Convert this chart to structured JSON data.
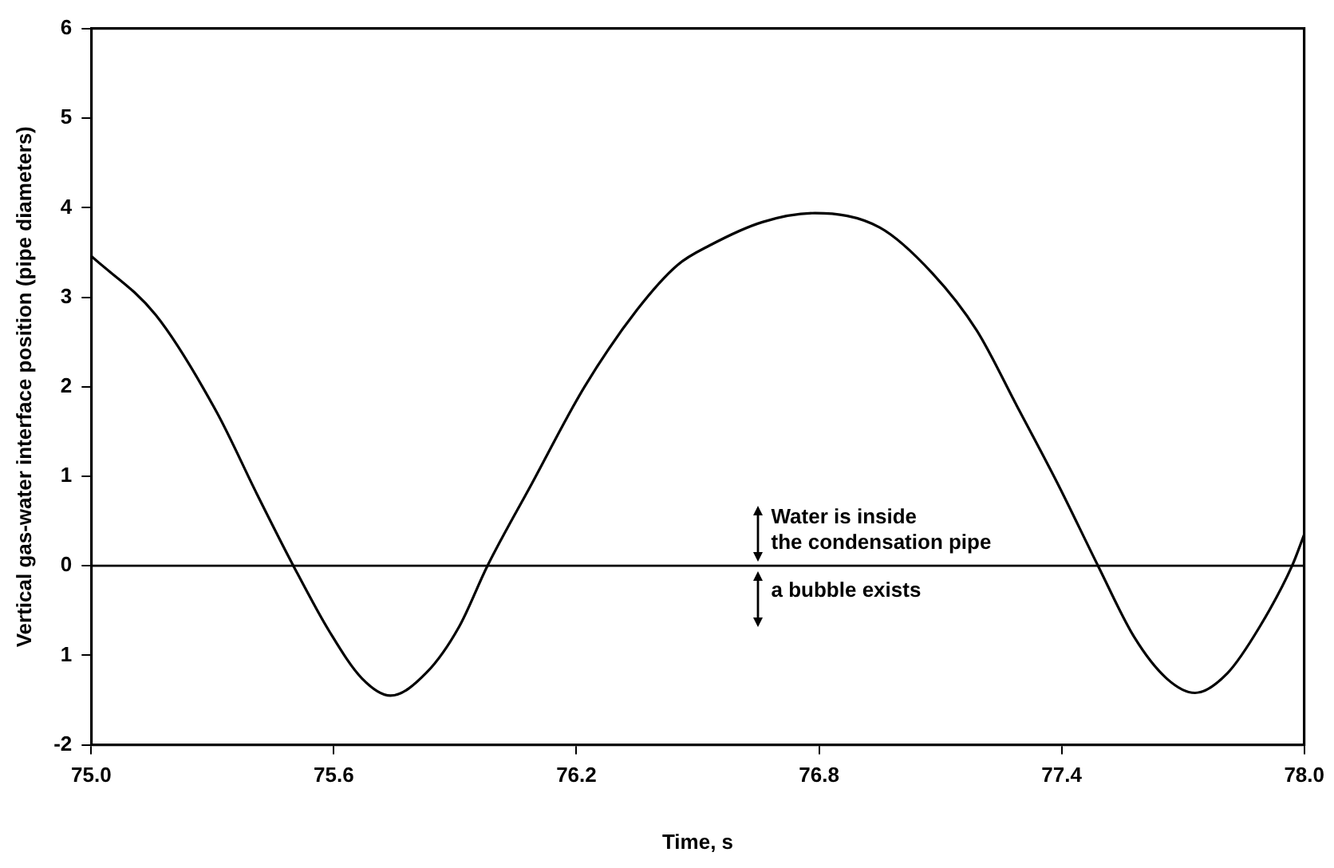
{
  "chart_data": {
    "type": "line",
    "xlabel": "Time, s",
    "ylabel": "Vertical gas-water interface position (pipe diameters)",
    "xlim": [
      75,
      78
    ],
    "xticks": [
      {
        "value": 75,
        "label": "75.0"
      },
      {
        "value": 75.6,
        "label": "75.6"
      },
      {
        "value": 76.2,
        "label": "76.2"
      },
      {
        "value": 76.8,
        "label": "76.8"
      },
      {
        "value": 77.4,
        "label": "77.4"
      },
      {
        "value": 78,
        "label": "78.0"
      }
    ],
    "ylim": [
      -2,
      6
    ],
    "yticks": [
      -2,
      {
        "value": -1,
        "label": "1"
      },
      0,
      1,
      2,
      3,
      4,
      5,
      6
    ],
    "series": [
      {
        "color": "#000000",
        "x": [
          75.0,
          75.16,
          75.31,
          75.41,
          75.5,
          75.59,
          75.67,
          75.74,
          75.83,
          75.91,
          75.98,
          76.09,
          76.22,
          76.35,
          76.45,
          76.53,
          76.66,
          76.79,
          76.95,
          77.08,
          77.19,
          77.29,
          77.39,
          77.49,
          77.58,
          77.66,
          77.73,
          77.81,
          77.89,
          77.97,
          78.0
        ],
        "values": [
          3.46,
          2.8,
          1.72,
          0.8,
          0,
          -0.74,
          -1.26,
          -1.45,
          -1.19,
          -0.68,
          0,
          0.92,
          2.0,
          2.86,
          3.36,
          3.58,
          3.84,
          3.94,
          3.78,
          3.27,
          2.63,
          1.78,
          0.92,
          0,
          -0.8,
          -1.26,
          -1.42,
          -1.2,
          -0.68,
          0,
          0.35
        ]
      }
    ],
    "ref_lines": [
      {
        "axis": "y",
        "value": 0,
        "color": "#000000"
      }
    ],
    "annotations": [
      "Water is inside",
      "the condensation pipe",
      "a bubble exists"
    ],
    "grid": false,
    "legend": false,
    "marker": "none",
    "line_style": "solid"
  }
}
